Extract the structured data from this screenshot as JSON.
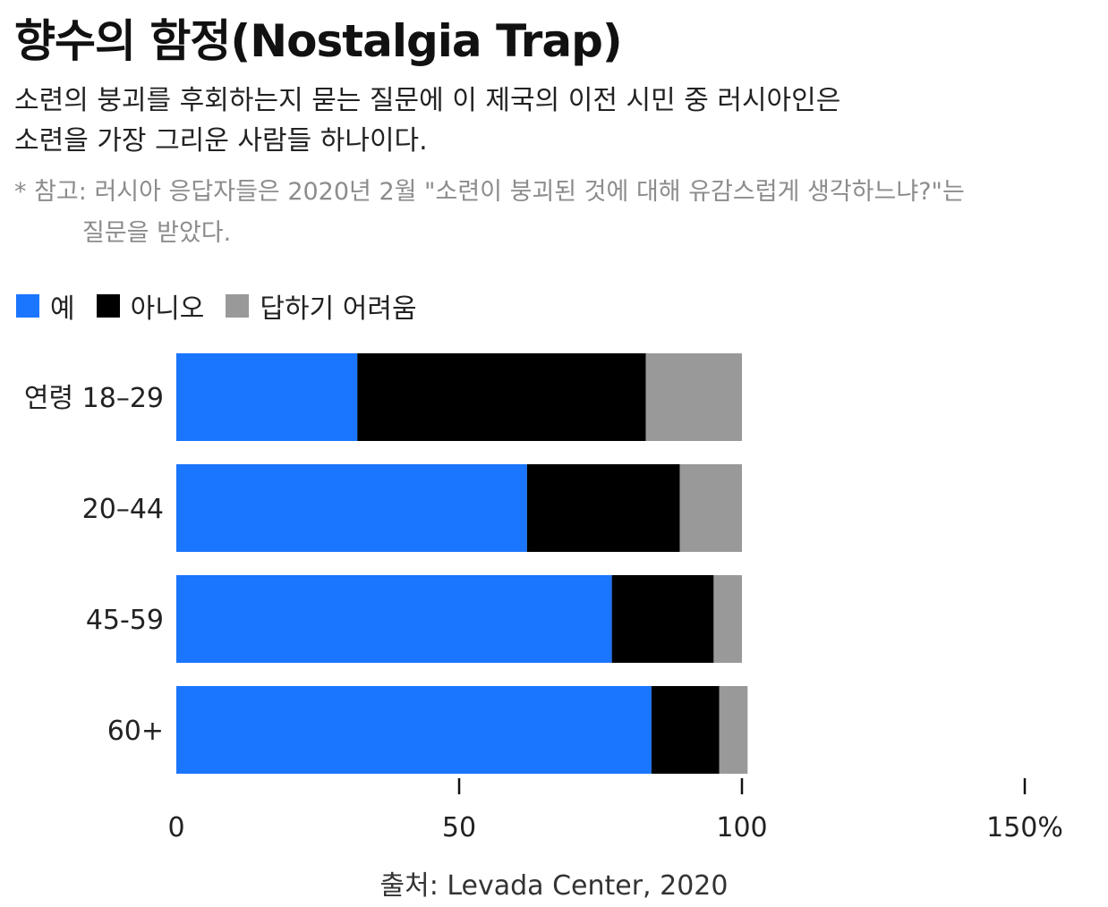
{
  "header": {
    "title": "향수의 함정(Nostalgia Trap)",
    "subtitle_lines": [
      "소련의 붕괴를 후회하는지 묻는 질문에 이 제국의 이전 시민 중 러시아인은",
      "소련을 가장 그리운 사람들 하나이다."
    ],
    "note_lines": [
      "* 참고: 러시아 응답자들은 2020년 2월 \"소련이 붕괴된 것에 대해 유감스럽게 생각하느냐?\"는",
      "질문을 받았다."
    ]
  },
  "footer": {
    "source": "출처: Levada Center, 2020"
  },
  "colors": {
    "yes": "#1a75ff",
    "no": "#000000",
    "hard_to_say": "#999999"
  },
  "chart_data": {
    "type": "bar",
    "orientation": "horizontal",
    "stacked": true,
    "categories": [
      "연령 18–29",
      "20–44",
      "45-59",
      "60+"
    ],
    "series": [
      {
        "name": "예",
        "values": [
          32,
          62,
          77,
          84
        ]
      },
      {
        "name": "아니오",
        "values": [
          51,
          27,
          18,
          12
        ]
      },
      {
        "name": "답하기 어려움",
        "values": [
          17,
          11,
          5,
          5
        ]
      }
    ],
    "xlim": [
      0,
      150
    ],
    "x_ticks": [
      0,
      50,
      100,
      150
    ],
    "x_tick_labels": [
      "0",
      "50",
      "100",
      "150%"
    ],
    "legend_position": "top-left",
    "grid": false
  }
}
